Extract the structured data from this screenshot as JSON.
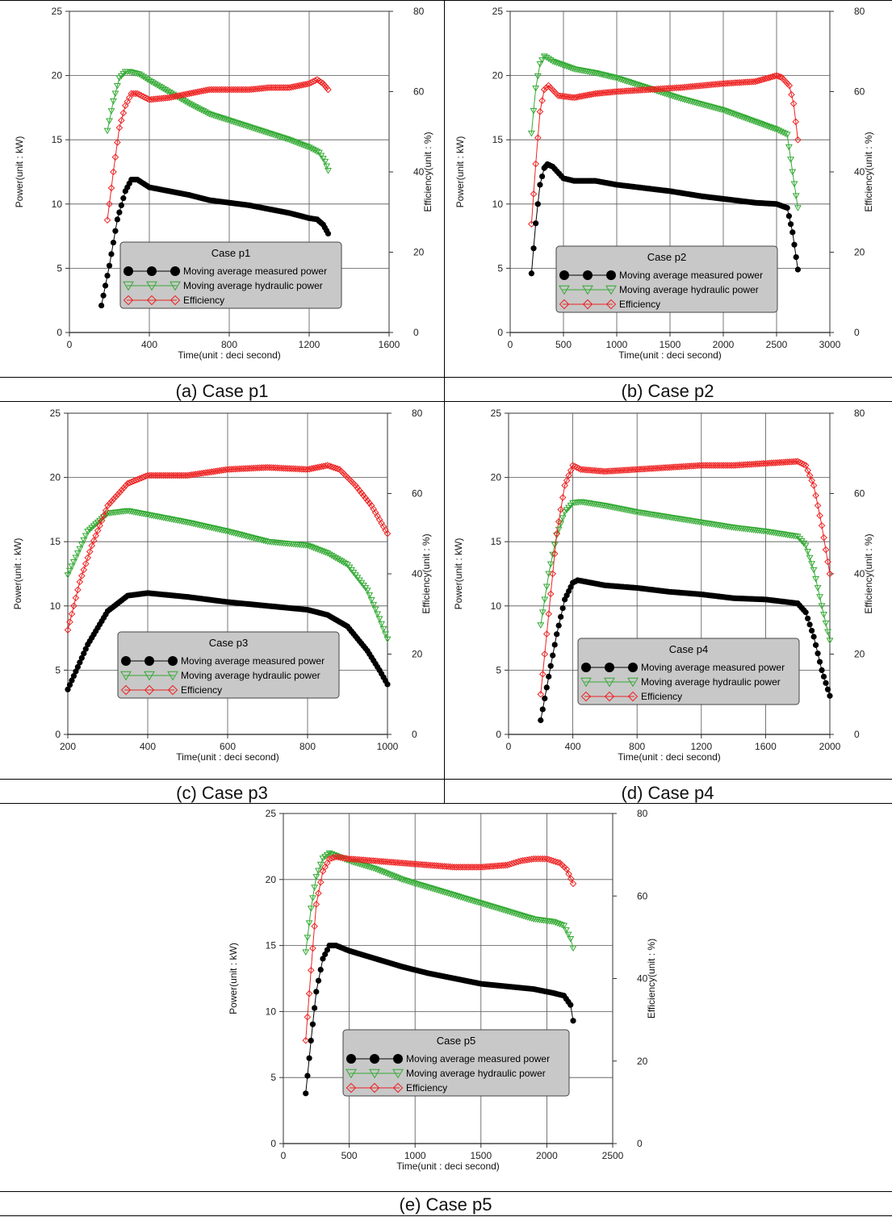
{
  "chart_data": [
    {
      "type": "line",
      "caption": "(a) Case p1",
      "legend_title": "Case p1",
      "xlabel": "Time(unit : deci second)",
      "ylabel": "Power(unit : kW)",
      "y2label": "Efficiency(unit : %)",
      "xlim": [
        0,
        1600
      ],
      "xticks": [
        0,
        400,
        800,
        1200,
        1600
      ],
      "ylim": [
        0,
        25
      ],
      "yticks": [
        0,
        5,
        10,
        15,
        20,
        25
      ],
      "y2lim": [
        0,
        80
      ],
      "y2ticks": [
        0,
        20,
        40,
        60,
        80
      ],
      "grid": true,
      "series": [
        {
          "name": "Moving average measured power",
          "axis": "left",
          "color": "#000000",
          "marker": "circle",
          "x": [
            160,
            200,
            240,
            280,
            310,
            340,
            400,
            500,
            600,
            700,
            800,
            900,
            1000,
            1100,
            1200,
            1240,
            1270,
            1295
          ],
          "y": [
            2.1,
            5.2,
            8.8,
            11.0,
            11.9,
            11.9,
            11.3,
            11.0,
            10.7,
            10.3,
            10.1,
            9.9,
            9.6,
            9.3,
            8.9,
            8.8,
            8.4,
            7.7
          ]
        },
        {
          "name": "Moving average hydraulic power",
          "axis": "left",
          "color": "#33aa33",
          "marker": "triangle-down",
          "x": [
            190,
            220,
            250,
            280,
            300,
            350,
            400,
            500,
            600,
            700,
            800,
            900,
            1000,
            1100,
            1200,
            1250,
            1280,
            1295
          ],
          "y": [
            15.7,
            18.0,
            19.8,
            20.3,
            20.3,
            20.1,
            19.6,
            18.7,
            17.8,
            17.0,
            16.5,
            16.0,
            15.5,
            15.0,
            14.4,
            14.0,
            13.3,
            12.6
          ]
        },
        {
          "name": "Efficiency",
          "axis": "right",
          "color": "#ee2222",
          "marker": "diamond",
          "x": [
            190,
            220,
            250,
            280,
            310,
            340,
            400,
            500,
            600,
            700,
            800,
            900,
            1000,
            1100,
            1200,
            1240,
            1270,
            1295
          ],
          "y": [
            28,
            40,
            51,
            56.5,
            59.5,
            59.5,
            58,
            58.5,
            59.5,
            60.5,
            60.5,
            60.5,
            61,
            61,
            62,
            63,
            62,
            60.5
          ]
        }
      ]
    },
    {
      "type": "line",
      "caption": "(b) Case p2",
      "legend_title": "Case p2",
      "xlabel": "Time(unit : deci second)",
      "ylabel": "Power(unit : kW)",
      "y2label": "Efficiency(unit : %)",
      "xlim": [
        0,
        3000
      ],
      "xticks": [
        0,
        500,
        1000,
        1500,
        2000,
        2500,
        3000
      ],
      "ylim": [
        0,
        25
      ],
      "yticks": [
        0,
        5,
        10,
        15,
        20,
        25
      ],
      "y2lim": [
        0,
        80
      ],
      "y2ticks": [
        0,
        20,
        40,
        60,
        80
      ],
      "grid": true,
      "series": [
        {
          "name": "Moving average measured power",
          "axis": "left",
          "color": "#000000",
          "marker": "circle",
          "x": [
            200,
            240,
            280,
            320,
            350,
            400,
            500,
            600,
            800,
            1000,
            1200,
            1500,
            1800,
            2000,
            2300,
            2500,
            2600,
            2650,
            2700
          ],
          "y": [
            4.6,
            8.5,
            11.5,
            12.8,
            13.1,
            12.9,
            12.0,
            11.8,
            11.8,
            11.5,
            11.3,
            11.0,
            10.6,
            10.4,
            10.1,
            10.0,
            9.7,
            7.8,
            4.9
          ]
        },
        {
          "name": "Moving average hydraulic power",
          "axis": "left",
          "color": "#33aa33",
          "marker": "triangle-down",
          "x": [
            200,
            240,
            280,
            320,
            400,
            600,
            800,
            1000,
            1300,
            1600,
            2000,
            2300,
            2500,
            2600,
            2650,
            2700
          ],
          "y": [
            15.5,
            19.0,
            20.9,
            21.5,
            21.1,
            20.5,
            20.2,
            19.8,
            19.0,
            18.2,
            17.3,
            16.4,
            15.8,
            15.4,
            12.5,
            9.7
          ]
        },
        {
          "name": "Efficiency",
          "axis": "right",
          "color": "#ee2222",
          "marker": "diamond",
          "x": [
            200,
            240,
            280,
            320,
            360,
            450,
            600,
            800,
            1000,
            1300,
            1600,
            2000,
            2300,
            2500,
            2550,
            2620,
            2660,
            2700
          ],
          "y": [
            27,
            42,
            55,
            60.5,
            61.5,
            59,
            58.5,
            59.5,
            60,
            60.5,
            61,
            62,
            62.5,
            64,
            63.5,
            61.5,
            57,
            48
          ]
        }
      ]
    },
    {
      "type": "line",
      "caption": "(c) Case p3",
      "legend_title": "Case p3",
      "xlabel": "Time(unit : deci second)",
      "ylabel": "Power(unit : kW)",
      "y2label": "Efficiency(unit : %)",
      "xlim": [
        200,
        1000
      ],
      "xticks": [
        200,
        400,
        600,
        800,
        1000
      ],
      "ylim": [
        0,
        25
      ],
      "yticks": [
        0,
        5,
        10,
        15,
        20,
        25
      ],
      "y2lim": [
        0,
        80
      ],
      "y2ticks": [
        0,
        20,
        40,
        60,
        80
      ],
      "grid": true,
      "series": [
        {
          "name": "Moving average measured power",
          "axis": "left",
          "color": "#000000",
          "marker": "circle",
          "x": [
            200,
            250,
            300,
            350,
            400,
            500,
            600,
            700,
            800,
            850,
            900,
            950,
            980,
            1000
          ],
          "y": [
            3.5,
            7.0,
            9.6,
            10.8,
            11.0,
            10.7,
            10.3,
            10.0,
            9.7,
            9.3,
            8.4,
            6.5,
            5.0,
            3.9
          ]
        },
        {
          "name": "Moving average hydraulic power",
          "axis": "left",
          "color": "#33aa33",
          "marker": "triangle-down",
          "x": [
            200,
            250,
            300,
            350,
            400,
            500,
            600,
            700,
            800,
            850,
            900,
            950,
            980,
            1000
          ],
          "y": [
            12.4,
            15.8,
            17.2,
            17.4,
            17.1,
            16.5,
            15.8,
            15.0,
            14.7,
            14.1,
            13.2,
            11.2,
            9.0,
            7.4
          ]
        },
        {
          "name": "Efficiency",
          "axis": "right",
          "color": "#ee2222",
          "marker": "diamond",
          "x": [
            200,
            230,
            260,
            300,
            350,
            400,
            500,
            600,
            700,
            800,
            850,
            880,
            920,
            960,
            1000
          ],
          "y": [
            26,
            38,
            47,
            57,
            62.5,
            64.5,
            64.5,
            66,
            66.5,
            66,
            67,
            66,
            62,
            57,
            50
          ]
        }
      ]
    },
    {
      "type": "line",
      "caption": "(d) Case p4",
      "legend_title": "Case p4",
      "xlabel": "Time(unit : deci second)",
      "ylabel": "Power(unit : kW)",
      "y2label": "Efficiency(unit : %)",
      "xlim": [
        0,
        2000
      ],
      "xticks": [
        0,
        400,
        800,
        1200,
        1600,
        2000
      ],
      "ylim": [
        0,
        25
      ],
      "yticks": [
        0,
        5,
        10,
        15,
        20,
        25
      ],
      "y2lim": [
        0,
        80
      ],
      "y2ticks": [
        0,
        20,
        40,
        60,
        80
      ],
      "grid": true,
      "series": [
        {
          "name": "Moving average measured power",
          "axis": "left",
          "color": "#000000",
          "marker": "circle",
          "x": [
            200,
            250,
            300,
            350,
            400,
            430,
            600,
            800,
            1000,
            1200,
            1400,
            1600,
            1800,
            1850,
            1900,
            1950,
            2000
          ],
          "y": [
            1.1,
            4.5,
            7.8,
            10.5,
            11.8,
            12.0,
            11.6,
            11.4,
            11.1,
            10.9,
            10.6,
            10.5,
            10.2,
            9.5,
            7.6,
            5.0,
            3.0
          ]
        },
        {
          "name": "Moving average hydraulic power",
          "axis": "left",
          "color": "#33aa33",
          "marker": "triangle-down",
          "x": [
            200,
            250,
            300,
            350,
            400,
            450,
            600,
            800,
            1000,
            1200,
            1400,
            1600,
            1800,
            1850,
            1900,
            1950,
            2000
          ],
          "y": [
            8.5,
            12.5,
            15.5,
            17.3,
            18.0,
            18.1,
            17.8,
            17.3,
            16.9,
            16.5,
            16.1,
            15.8,
            15.4,
            14.7,
            12.8,
            10.0,
            7.3
          ]
        },
        {
          "name": "Efficiency",
          "axis": "right",
          "color": "#ee2222",
          "marker": "diamond",
          "x": [
            200,
            250,
            300,
            350,
            400,
            450,
            600,
            800,
            1000,
            1200,
            1400,
            1600,
            1800,
            1850,
            1900,
            1950,
            2000
          ],
          "y": [
            10,
            30,
            50,
            62,
            67,
            66,
            65.5,
            66,
            66.5,
            67,
            67,
            67.5,
            68,
            67,
            62,
            52,
            40
          ]
        }
      ]
    },
    {
      "type": "line",
      "caption": "(e) Case p5",
      "legend_title": "Case p5",
      "xlabel": "Time(unit : deci second)",
      "ylabel": "Power(unit : kW)",
      "y2label": "Efficiency(unit : %)",
      "xlim": [
        0,
        2500
      ],
      "xticks": [
        0,
        500,
        1000,
        1500,
        2000,
        2500
      ],
      "ylim": [
        0,
        25
      ],
      "yticks": [
        0,
        5,
        10,
        15,
        20,
        25
      ],
      "y2lim": [
        0,
        80
      ],
      "y2ticks": [
        0,
        20,
        40,
        60,
        80
      ],
      "grid": true,
      "series": [
        {
          "name": "Moving average measured power",
          "axis": "left",
          "color": "#000000",
          "marker": "circle",
          "x": [
            170,
            210,
            250,
            300,
            350,
            400,
            500,
            700,
            900,
            1100,
            1300,
            1500,
            1700,
            1900,
            2050,
            2130,
            2180,
            2200
          ],
          "y": [
            3.8,
            7.8,
            11.5,
            14.0,
            15.0,
            15.0,
            14.6,
            14.0,
            13.4,
            12.9,
            12.5,
            12.1,
            11.9,
            11.7,
            11.4,
            11.2,
            10.5,
            9.3
          ]
        },
        {
          "name": "Moving average hydraulic power",
          "axis": "left",
          "color": "#33aa33",
          "marker": "triangle-down",
          "x": [
            170,
            210,
            250,
            300,
            350,
            400,
            500,
            700,
            900,
            1100,
            1300,
            1500,
            1700,
            1900,
            2050,
            2130,
            2180,
            2200
          ],
          "y": [
            14.5,
            17.8,
            20.2,
            21.6,
            22.0,
            21.8,
            21.4,
            20.8,
            20.0,
            19.4,
            18.8,
            18.2,
            17.6,
            17.0,
            16.8,
            16.5,
            15.5,
            14.8
          ]
        },
        {
          "name": "Efficiency",
          "axis": "right",
          "color": "#ee2222",
          "marker": "diamond",
          "x": [
            170,
            210,
            250,
            300,
            350,
            400,
            500,
            700,
            900,
            1100,
            1300,
            1500,
            1700,
            1800,
            1900,
            2000,
            2100,
            2150,
            2200
          ],
          "y": [
            25,
            42,
            58,
            66,
            69,
            69.5,
            69,
            68.5,
            68,
            67.5,
            67,
            67,
            67.5,
            68.5,
            69,
            69,
            68,
            66.5,
            63
          ]
        }
      ]
    }
  ]
}
